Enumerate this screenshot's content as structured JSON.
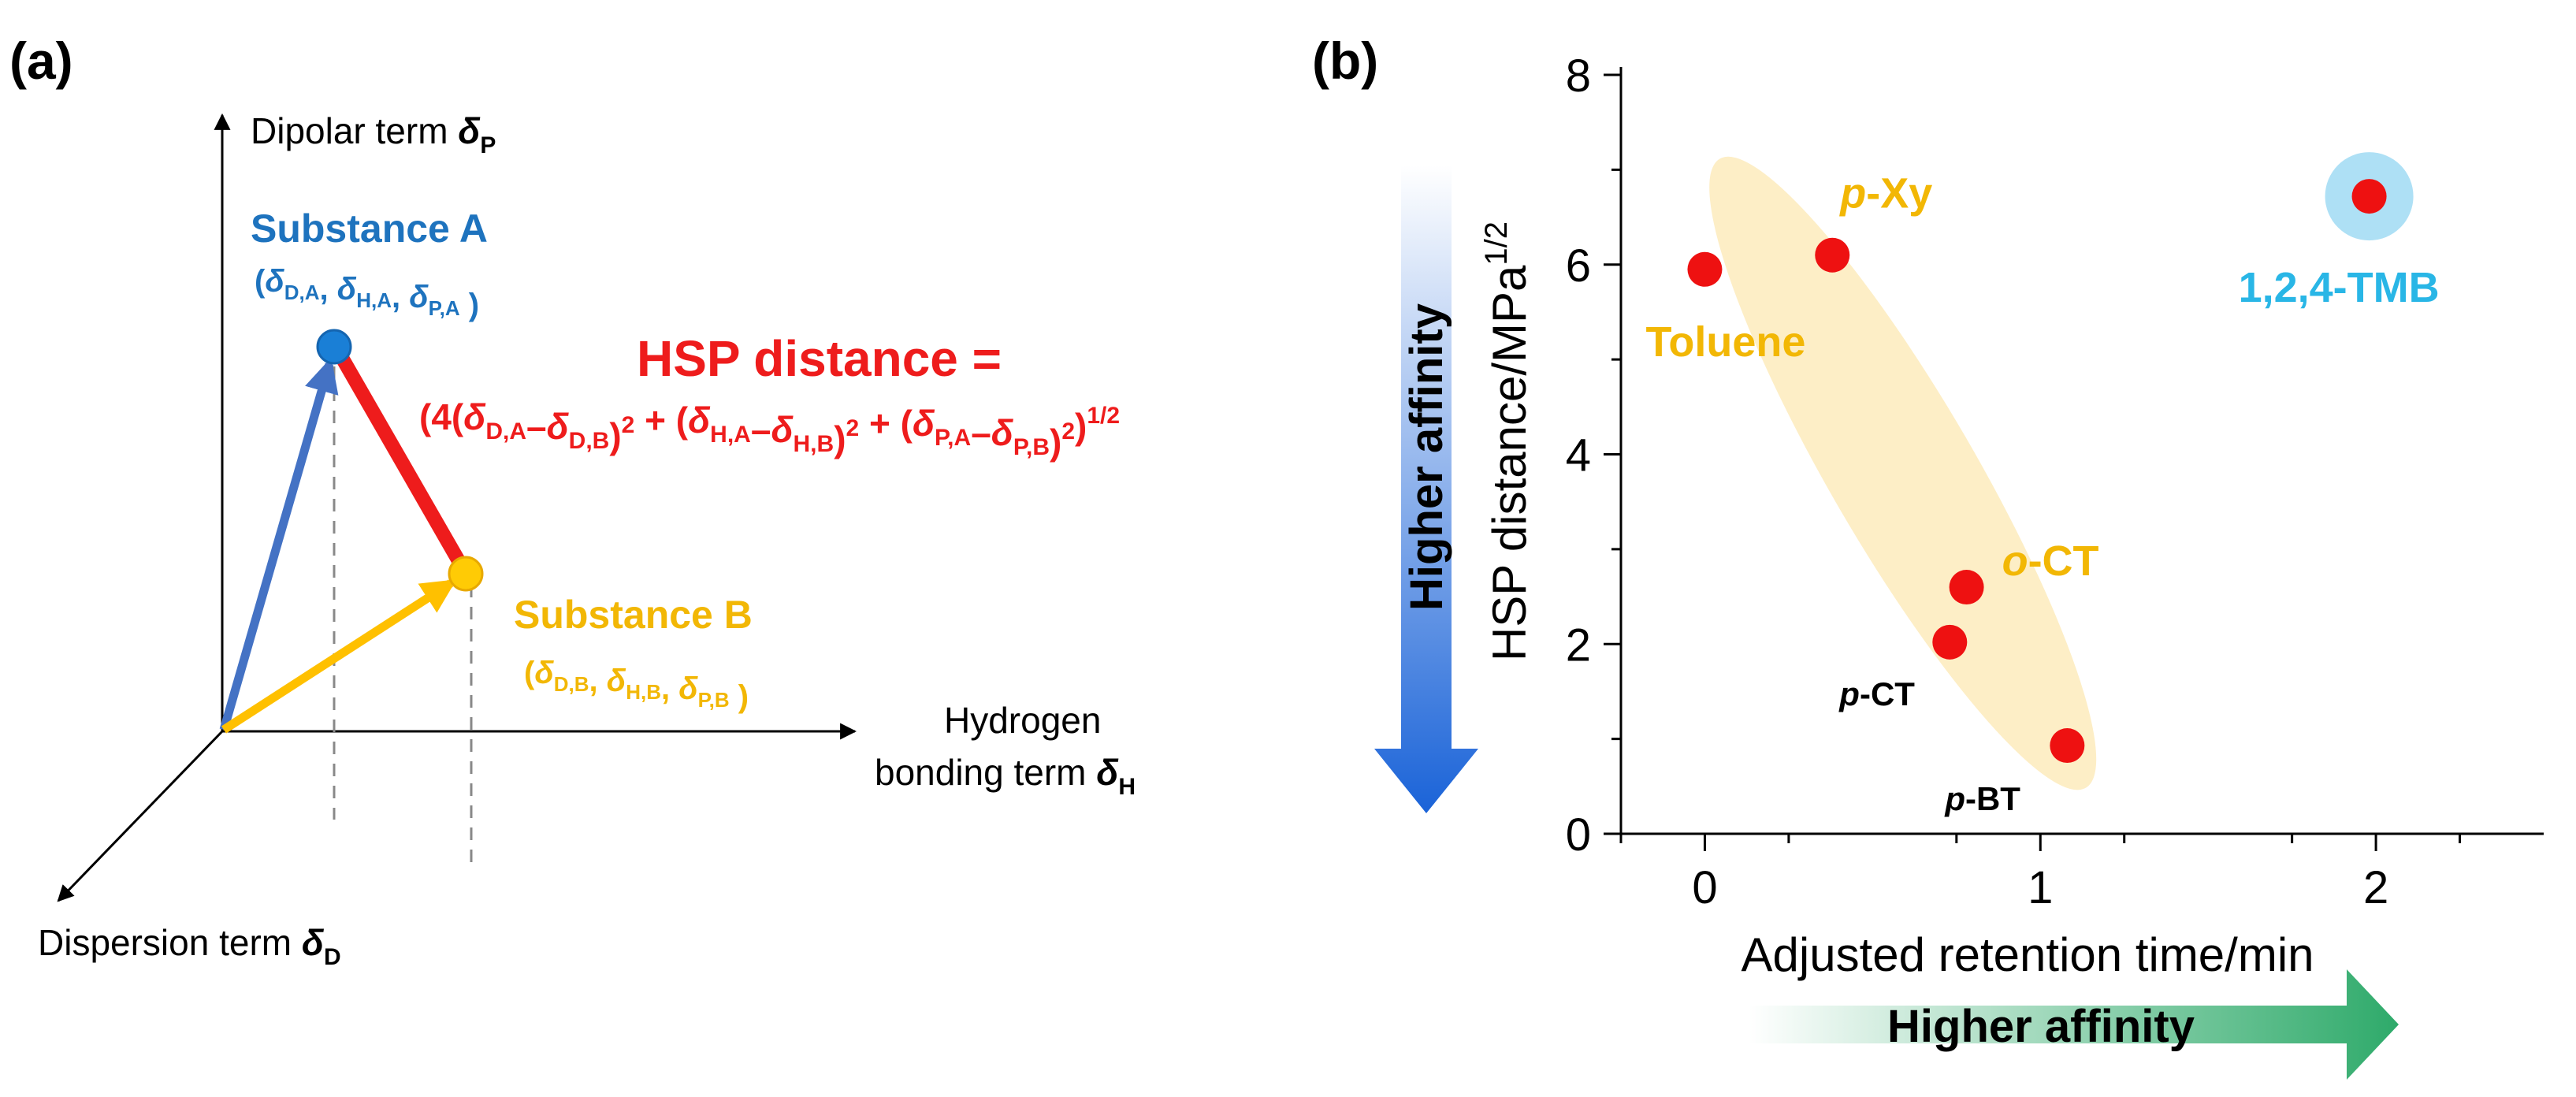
{
  "panel_a": {
    "label": "(a)",
    "axis_p": {
      "text": "Dipolar term ",
      "sym": "δ",
      "sub": "P"
    },
    "axis_h_line1": "Hydrogen",
    "axis_h_line2": {
      "text": "bonding term ",
      "sym": "δ",
      "sub": "H"
    },
    "axis_d": {
      "text": "Dispersion term ",
      "sym": "δ",
      "sub": "D"
    },
    "substance_a": {
      "name": "Substance A",
      "coord": [
        "(",
        "δ",
        "D,A",
        ", ",
        "δ",
        "H,A",
        ", ",
        "δ",
        "P,A",
        " )"
      ]
    },
    "substance_b": {
      "name": "Substance B",
      "coord": [
        "(",
        "δ",
        "D,B",
        ", ",
        "δ",
        "H,B",
        ", ",
        "δ",
        "P,B",
        " )"
      ]
    },
    "hsp_title": "HSP distance =",
    "formula": [
      "(4(",
      "δ",
      "D,A",
      "–",
      "δ",
      "D,B",
      ")",
      "2",
      " + (",
      "δ",
      "H,A",
      "–",
      "δ",
      "H,B",
      ")",
      "2",
      " + (",
      "δ",
      "P,A",
      "–",
      "δ",
      "P,B",
      ")",
      "2",
      ")",
      "1/2"
    ],
    "colors": {
      "a": "#1e73be",
      "b": "#f2b705",
      "distance": "#ee1c1c",
      "arrow_a": "#4472c4",
      "arrow_b": "#ffc000"
    }
  },
  "chart_data": {
    "type": "scatter",
    "panel_label": "(b)",
    "xlabel": "Adjusted retention time/min",
    "ylabel": "HSP distance/MPa",
    "ylabel_sup": "1/2",
    "xlim": [
      -0.25,
      2.5
    ],
    "ylim": [
      0,
      8
    ],
    "xticks": [
      0,
      1,
      2
    ],
    "yticks": [
      0,
      2,
      4,
      6,
      8
    ],
    "points": [
      {
        "name": "Toluene",
        "prefix": "",
        "base": "Toluene",
        "x": 0.0,
        "y": 5.95,
        "label_color": "#f2b705",
        "label_size": "large",
        "highlight": false
      },
      {
        "name": "p-Xy",
        "prefix": "p",
        "base": "-Xy",
        "x": 0.38,
        "y": 6.1,
        "label_color": "#f2b705",
        "label_size": "large",
        "highlight": false
      },
      {
        "name": "o-CT",
        "prefix": "o",
        "base": "-CT",
        "x": 0.78,
        "y": 2.6,
        "label_color": "#f2b705",
        "label_size": "large",
        "highlight": false
      },
      {
        "name": "p-CT",
        "prefix": "p",
        "base": "-CT",
        "x": 0.73,
        "y": 2.02,
        "label_color": "#000000",
        "label_size": "small",
        "highlight": false
      },
      {
        "name": "p-BT",
        "prefix": "p",
        "base": "-BT",
        "x": 1.08,
        "y": 0.93,
        "label_color": "#000000",
        "label_size": "small",
        "highlight": false
      },
      {
        "name": "1,2,4-TMB",
        "prefix": "",
        "base": "1,2,4-TMB",
        "x": 1.98,
        "y": 6.72,
        "label_color": "#29b6e6",
        "label_size": "large",
        "highlight": true
      }
    ],
    "affinity_x_label": "Higher affinity",
    "affinity_y_label": "Higher affinity",
    "colors": {
      "point": "#ee1111",
      "ellipse": "#fdeec6",
      "highlight": "#aee0f5"
    }
  }
}
